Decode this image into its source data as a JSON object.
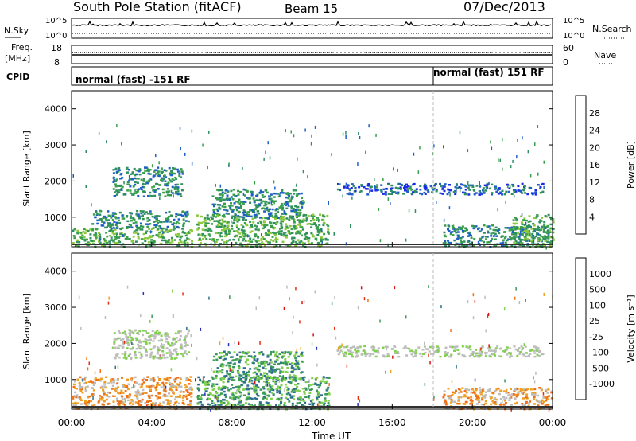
{
  "header": {
    "station": "South Pole Station (fitACF)",
    "beam": "Beam 15",
    "date": "07/Dec/2013"
  },
  "strips": {
    "nsky_label": "N.Sky",
    "nsearch_label": "N.Search",
    "nsky_ticks": [
      "10^5",
      "10^0"
    ],
    "nsearch_ticks": [
      "10^5",
      "10^0"
    ],
    "freq_label": "Freq.",
    "freq_unit": "[MHz]",
    "freq_ticks": [
      "18",
      "8"
    ],
    "nave_label": "Nave",
    "nave_ticks": [
      "60",
      "0"
    ],
    "cpid_label": "CPID",
    "cpid_segments": [
      {
        "label": "normal (fast) -151 RF",
        "start_hour": 0
      },
      {
        "label": "normal (fast) 151 RF",
        "start_hour": 18.05
      }
    ]
  },
  "chart_data": [
    {
      "type": "heatmap",
      "name": "power",
      "ylabel": "Slant Range [km]",
      "xlabel": "",
      "xlim": [
        0,
        24
      ],
      "ylim": [
        180,
        4500
      ],
      "x_ticks": [
        "00:00",
        "04:00",
        "08:00",
        "12:00",
        "16:00",
        "20:00",
        "00:00"
      ],
      "y_ticks": [
        1000,
        2000,
        3000,
        4000
      ],
      "colorbar": {
        "label": "Power [dB]",
        "ticks": [
          "4",
          "8",
          "12",
          "16",
          "20",
          "24",
          "28"
        ],
        "colors": [
          "#1a28e8",
          "#1f5fc8",
          "#2f8f5f",
          "#3aa04a",
          "#8cc83a",
          "#e8d020",
          "#f0a020",
          "#f07018",
          "#e83818",
          "#d81010"
        ]
      },
      "regions": [
        {
          "t": [
            0.0,
            6.0
          ],
          "r": [
            200,
            700
          ],
          "level": 3
        },
        {
          "t": [
            1.0,
            5.8
          ],
          "r": [
            700,
            1200
          ],
          "level": 2
        },
        {
          "t": [
            2.0,
            5.5
          ],
          "r": [
            1600,
            2400
          ],
          "level": 2
        },
        {
          "t": [
            6.2,
            12.8
          ],
          "r": [
            200,
            1100
          ],
          "level": 3
        },
        {
          "t": [
            7.0,
            11.5
          ],
          "r": [
            1000,
            1800
          ],
          "level": 2
        },
        {
          "t": [
            13.2,
            23.5
          ],
          "r": [
            1650,
            1950
          ],
          "level": 1
        },
        {
          "t": [
            18.5,
            24.0
          ],
          "r": [
            200,
            800
          ],
          "level": 2
        },
        {
          "t": [
            22.0,
            24.0
          ],
          "r": [
            200,
            1100
          ],
          "level": 3
        }
      ]
    },
    {
      "type": "heatmap",
      "name": "velocity",
      "ylabel": "Slant Range [km]",
      "xlabel": "Time UT",
      "xlim": [
        0,
        24
      ],
      "ylim": [
        180,
        4500
      ],
      "x_ticks": [
        "00:00",
        "04:00",
        "08:00",
        "12:00",
        "16:00",
        "20:00",
        "00:00"
      ],
      "y_ticks": [
        1000,
        2000,
        3000,
        4000
      ],
      "colorbar": {
        "label": "Velocity [m s⁻¹]",
        "ticks": [
          "1000",
          "500",
          "100",
          "25",
          "-25",
          "-100",
          "-500",
          "-1000"
        ],
        "colors": [
          "#2030c0",
          "#2f6f90",
          "#3a9a5a",
          "#7fd04a",
          "#bdbdbd",
          "#bdbdbd",
          "#f0a020",
          "#f07018",
          "#e83010",
          "#d81010"
        ]
      },
      "regions": [
        {
          "t": [
            0.0,
            6.0
          ],
          "r": [
            200,
            1100
          ],
          "v": "orange"
        },
        {
          "t": [
            2.0,
            5.8
          ],
          "r": [
            1600,
            2400
          ],
          "v": "grey"
        },
        {
          "t": [
            6.2,
            12.8
          ],
          "r": [
            200,
            1100
          ],
          "v": "green"
        },
        {
          "t": [
            7.0,
            11.5
          ],
          "r": [
            1000,
            1800
          ],
          "v": "green"
        },
        {
          "t": [
            13.2,
            23.5
          ],
          "r": [
            1650,
            1950
          ],
          "v": "grey"
        },
        {
          "t": [
            18.5,
            24.0
          ],
          "r": [
            200,
            800
          ],
          "v": "orange"
        }
      ]
    }
  ]
}
